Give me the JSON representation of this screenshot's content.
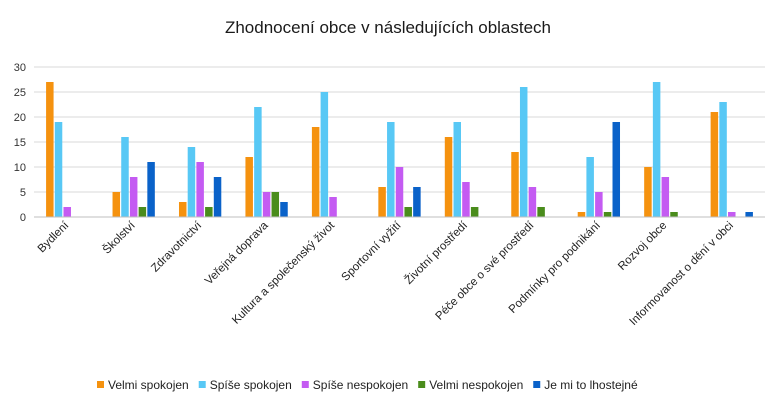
{
  "chart_data": {
    "type": "bar",
    "title": "Zhodnocení obce v následujících oblastech",
    "xlabel": "",
    "ylabel": "",
    "ylim": [
      0,
      30
    ],
    "yticks": [
      0,
      5,
      10,
      15,
      20,
      25,
      30
    ],
    "grid": true,
    "legend_position": "bottom",
    "categories": [
      "Bydlení",
      "Školství",
      "Zdravotnictví",
      "Veřejná doprava",
      "Kultura a společenský život",
      "Sportovní vyžití",
      "Životní prostředí",
      "Péče obce o své prostředí",
      "Podmínky pro podnikání",
      "Rozvoj obce",
      "Informovanost o dění v obci"
    ],
    "series": [
      {
        "name": "Velmi spokojen",
        "color": "#F5920F",
        "values": [
          27,
          5,
          3,
          12,
          18,
          6,
          16,
          13,
          1,
          10,
          21
        ]
      },
      {
        "name": "Spíše spokojen",
        "color": "#58C8F5",
        "values": [
          19,
          16,
          14,
          22,
          25,
          19,
          19,
          26,
          12,
          27,
          23
        ]
      },
      {
        "name": "Spíše nespokojen",
        "color": "#C45BF2",
        "values": [
          2,
          8,
          11,
          5,
          4,
          10,
          7,
          6,
          5,
          8,
          1
        ]
      },
      {
        "name": "Velmi nespokojen",
        "color": "#4A8C1C",
        "values": [
          0,
          2,
          2,
          5,
          0,
          2,
          2,
          2,
          1,
          1,
          0
        ]
      },
      {
        "name": "Je mi to lhostejné",
        "color": "#0A62C9",
        "values": [
          0,
          11,
          8,
          3,
          0,
          6,
          0,
          0,
          19,
          0,
          1
        ]
      }
    ]
  }
}
